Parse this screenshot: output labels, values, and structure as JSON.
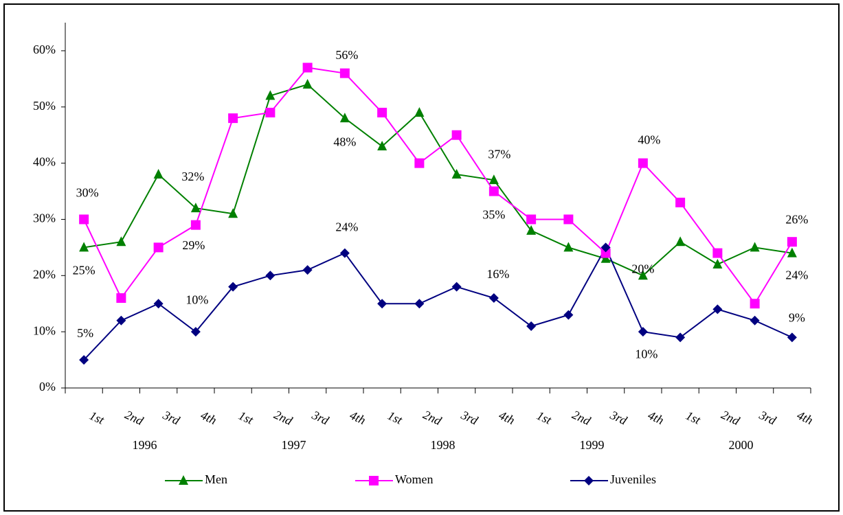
{
  "chart_data": {
    "type": "line",
    "categories": [
      "1st",
      "2nd",
      "3rd",
      "4th",
      "1st",
      "2nd",
      "3rd",
      "4th",
      "1st",
      "2nd",
      "3rd",
      "4th",
      "1st",
      "2nd",
      "3rd",
      "4th",
      "1st",
      "2nd",
      "3rd",
      "4th"
    ],
    "category_groups": [
      "1996",
      "1997",
      "1998",
      "1999",
      "2000"
    ],
    "series": [
      {
        "name": "Men",
        "color": "#008000",
        "marker": "triangle",
        "values": [
          25,
          26,
          38,
          32,
          31,
          52,
          54,
          48,
          43,
          49,
          38,
          37,
          28,
          25,
          23,
          20,
          26,
          22,
          25,
          24
        ],
        "value_labels": [
          "25%",
          null,
          null,
          "32%",
          null,
          null,
          null,
          "48%",
          null,
          null,
          null,
          "37%",
          null,
          null,
          null,
          "20%",
          null,
          null,
          null,
          "24%"
        ]
      },
      {
        "name": "Women",
        "color": "#ff00ff",
        "marker": "square",
        "values": [
          30,
          16,
          25,
          29,
          48,
          49,
          57,
          56,
          49,
          40,
          45,
          35,
          30,
          30,
          24,
          40,
          33,
          24,
          15,
          26
        ],
        "value_labels": [
          "30%",
          null,
          null,
          "29%",
          null,
          null,
          null,
          "56%",
          null,
          null,
          null,
          "35%",
          null,
          null,
          null,
          "40%",
          null,
          null,
          null,
          "26%"
        ]
      },
      {
        "name": "Juveniles",
        "color": "#000080",
        "marker": "diamond",
        "values": [
          5,
          12,
          15,
          10,
          18,
          20,
          21,
          24,
          15,
          15,
          18,
          16,
          11,
          13,
          25,
          10,
          9,
          14,
          12,
          9
        ],
        "value_labels": [
          "5%",
          null,
          null,
          "10%",
          null,
          null,
          null,
          "24%",
          null,
          null,
          null,
          "16%",
          null,
          null,
          null,
          "10%",
          null,
          null,
          null,
          "9%"
        ]
      }
    ],
    "ylim": [
      0,
      65
    ],
    "yticks": [
      {
        "value": 0,
        "label": "0%"
      },
      {
        "value": 10,
        "label": "10%"
      },
      {
        "value": 20,
        "label": "20%"
      },
      {
        "value": 30,
        "label": "30%"
      },
      {
        "value": 40,
        "label": "40%"
      },
      {
        "value": 50,
        "label": "50%"
      },
      {
        "value": 60,
        "label": "60%"
      }
    ],
    "legend": "bottom"
  }
}
